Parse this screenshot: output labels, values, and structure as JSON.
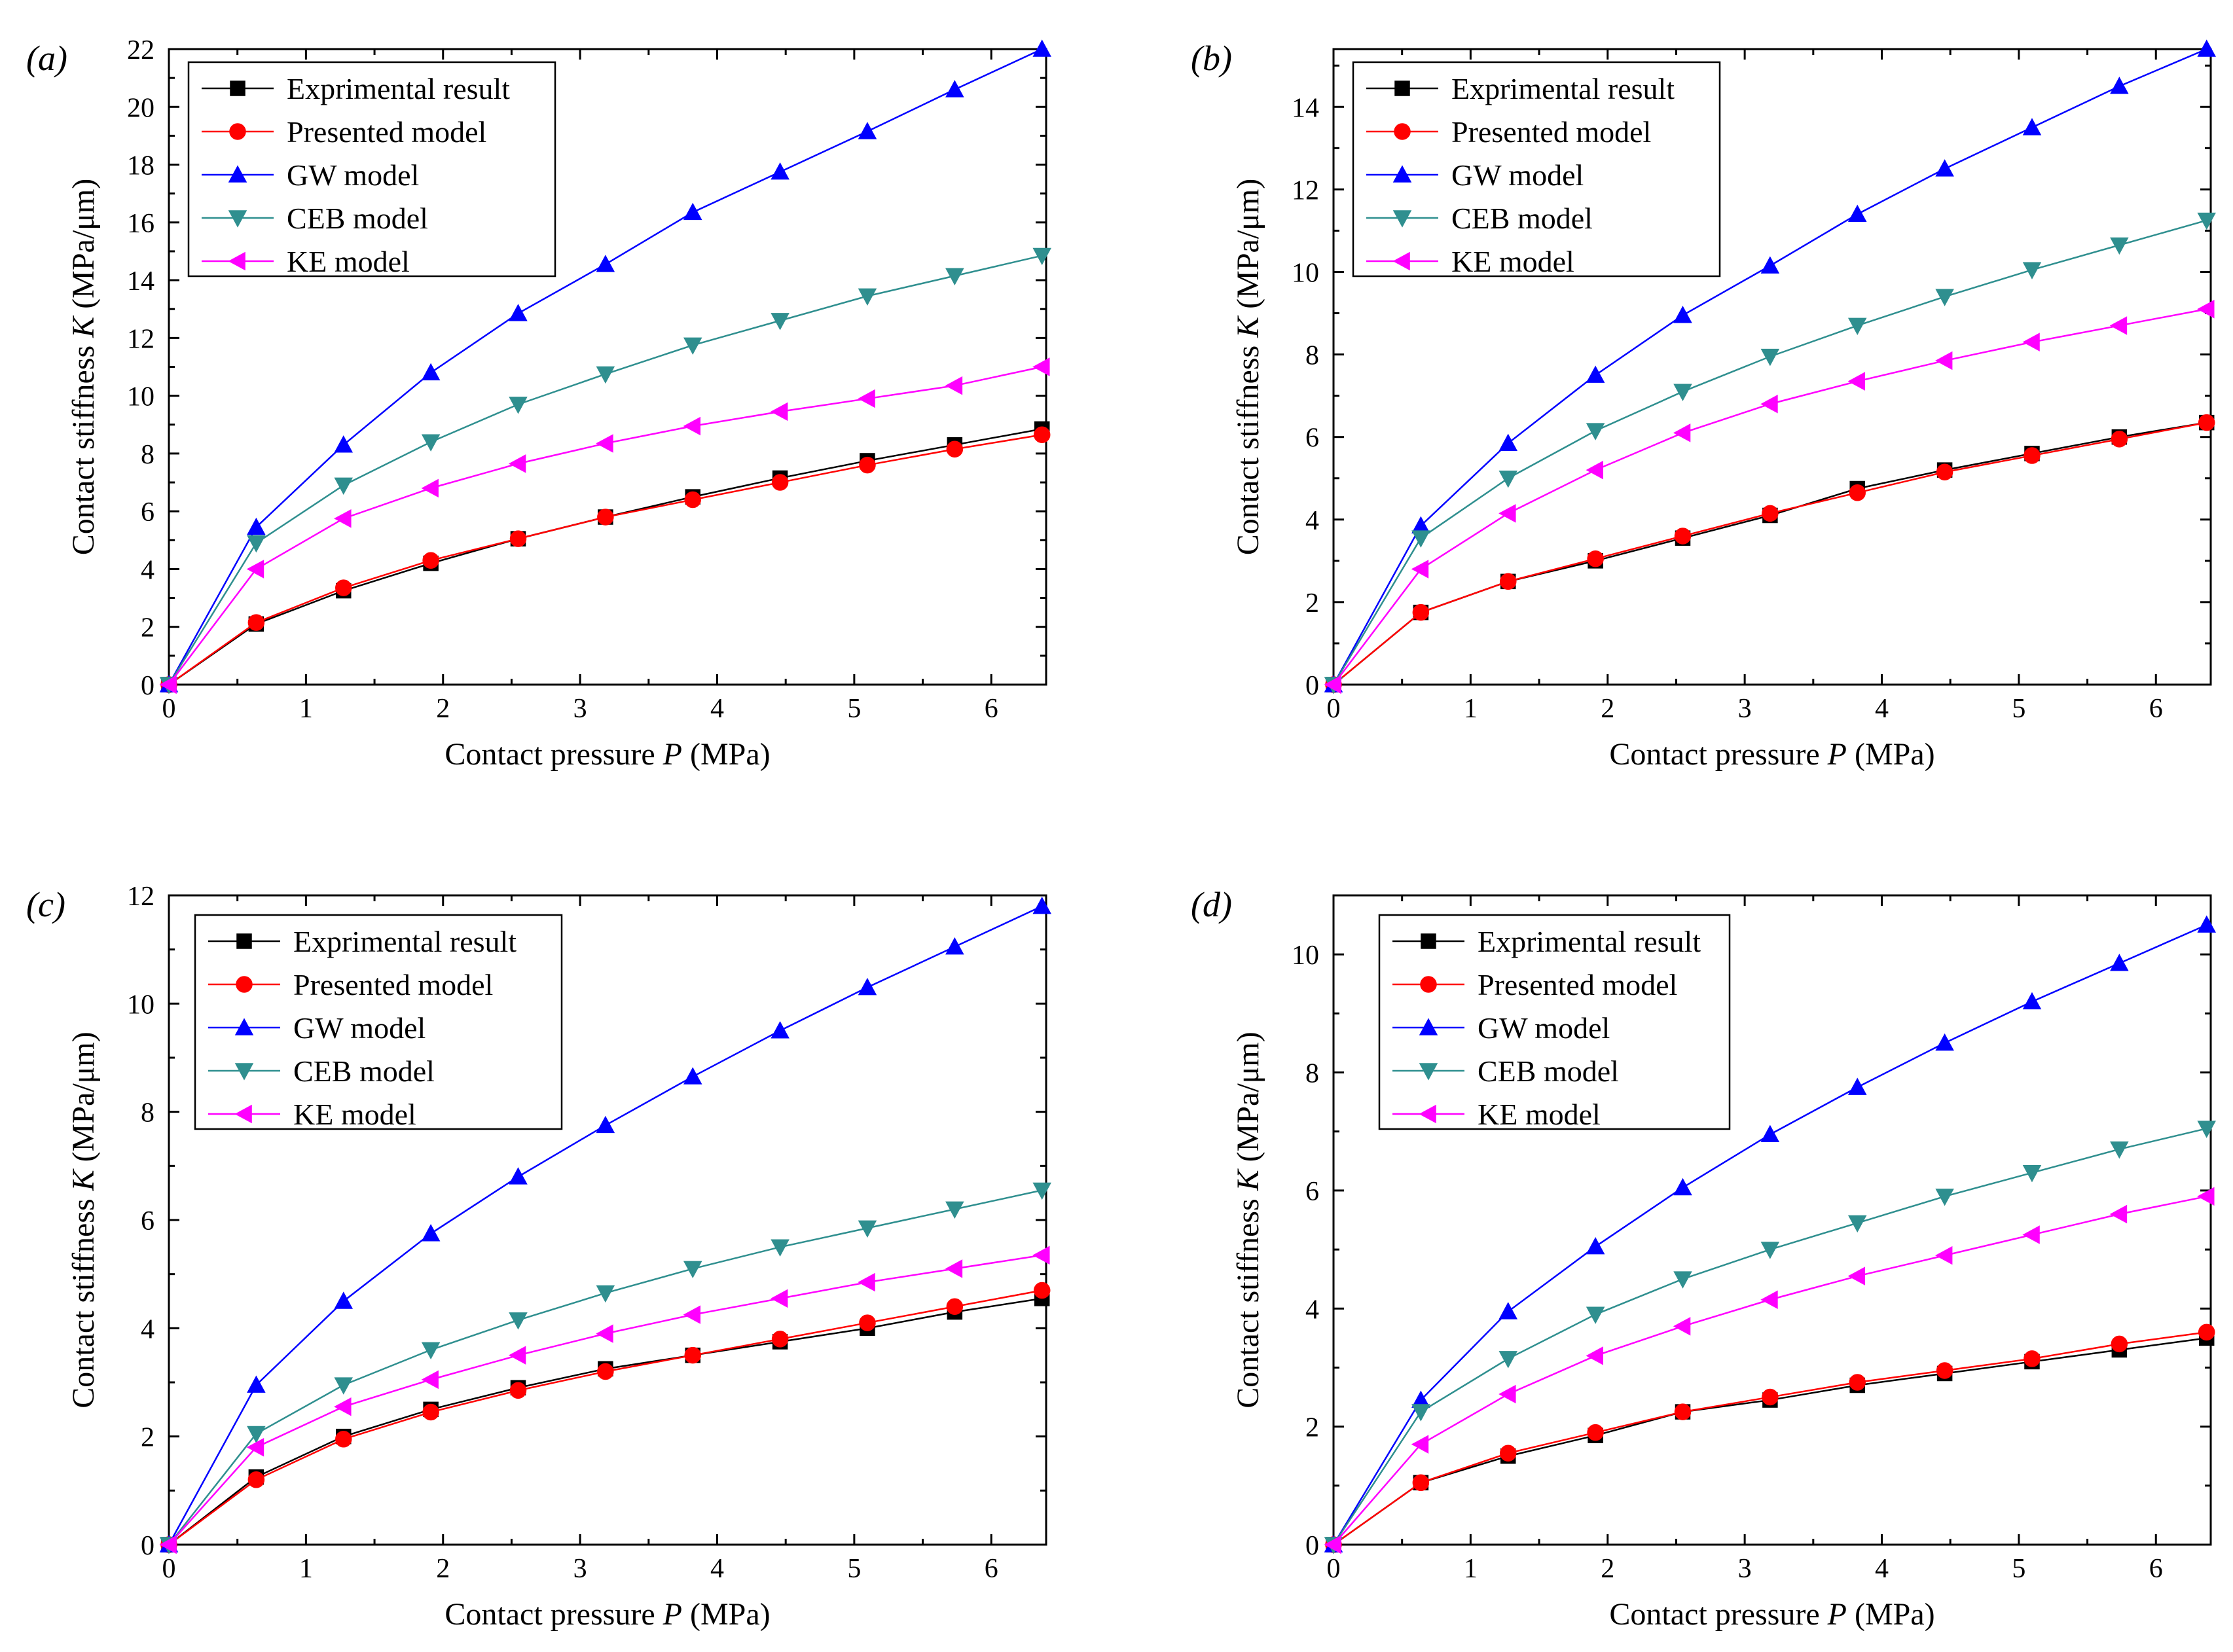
{
  "colors": {
    "Exprimental result": "#000000",
    "Presented model": "#ff0000",
    "GW model": "#0000ff",
    "CEB model": "#2f8f8f",
    "KE model": "#ff00ff"
  },
  "chart_data": [
    {
      "type": "line",
      "panel_label": "(a)",
      "xlabel": "Contact pressure",
      "xlabel_var": "P",
      "xlabel_unit": " (MPa)",
      "ylabel": "Contact stiffness",
      "ylabel_var": "K",
      "ylabel_unit": " (MPa/μm)",
      "xlim": [
        0,
        6.4
      ],
      "ylim": [
        0,
        22
      ],
      "xticks": [
        0,
        1,
        2,
        3,
        4,
        5,
        6
      ],
      "yticks": [
        0,
        2,
        4,
        6,
        8,
        10,
        12,
        14,
        16,
        18,
        20,
        22
      ],
      "legend_position": "top-left",
      "x": [
        0,
        0.637,
        1.274,
        1.911,
        2.548,
        3.185,
        3.822,
        4.459,
        5.096,
        5.733,
        6.37
      ],
      "series": [
        {
          "name": "Exprimental result",
          "marker": "square",
          "values": [
            0,
            2.1,
            3.25,
            4.2,
            5.05,
            5.8,
            6.5,
            7.15,
            7.75,
            8.3,
            8.85
          ]
        },
        {
          "name": "Presented model",
          "marker": "circle",
          "values": [
            0,
            2.15,
            3.35,
            4.3,
            5.05,
            5.8,
            6.4,
            7.0,
            7.6,
            8.15,
            8.65
          ]
        },
        {
          "name": "GW model",
          "marker": "triangle-up",
          "values": [
            0,
            5.45,
            8.3,
            10.8,
            12.85,
            14.55,
            16.35,
            17.75,
            19.15,
            20.6,
            22.0
          ]
        },
        {
          "name": "CEB model",
          "marker": "triangle-down",
          "values": [
            0,
            4.9,
            6.9,
            8.4,
            9.7,
            10.75,
            11.75,
            12.6,
            13.45,
            14.15,
            14.85
          ]
        },
        {
          "name": "KE model",
          "marker": "triangle-left",
          "values": [
            0,
            4.0,
            5.75,
            6.8,
            7.65,
            8.35,
            8.95,
            9.45,
            9.9,
            10.35,
            11.0
          ]
        }
      ]
    },
    {
      "type": "line",
      "panel_label": "(b)",
      "xlabel": "Contact pressure",
      "xlabel_var": "P",
      "xlabel_unit": " (MPa)",
      "ylabel": "Contact stiffness",
      "ylabel_var": "K",
      "ylabel_unit": " (MPa/μm)",
      "xlim": [
        0,
        6.4
      ],
      "ylim": [
        0,
        15.4
      ],
      "xticks": [
        0,
        1,
        2,
        3,
        4,
        5,
        6
      ],
      "yticks": [
        0,
        2,
        4,
        6,
        8,
        10,
        12,
        14
      ],
      "legend_position": "top-left",
      "x": [
        0,
        0.637,
        1.274,
        1.911,
        2.548,
        3.185,
        3.822,
        4.459,
        5.096,
        5.733,
        6.37
      ],
      "series": [
        {
          "name": "Exprimental result",
          "marker": "square",
          "values": [
            0,
            1.75,
            2.5,
            3.0,
            3.55,
            4.1,
            4.75,
            5.2,
            5.6,
            6.0,
            6.35
          ]
        },
        {
          "name": "Presented model",
          "marker": "circle",
          "values": [
            0,
            1.75,
            2.5,
            3.05,
            3.6,
            4.15,
            4.65,
            5.15,
            5.55,
            5.95,
            6.35
          ]
        },
        {
          "name": "GW model",
          "marker": "triangle-up",
          "values": [
            0,
            3.85,
            5.85,
            7.5,
            8.95,
            10.15,
            11.4,
            12.5,
            13.5,
            14.5,
            15.4
          ]
        },
        {
          "name": "CEB model",
          "marker": "triangle-down",
          "values": [
            0,
            3.55,
            5.0,
            6.15,
            7.1,
            7.95,
            8.7,
            9.4,
            10.05,
            10.65,
            11.25
          ]
        },
        {
          "name": "KE model",
          "marker": "triangle-left",
          "values": [
            0,
            2.8,
            4.15,
            5.2,
            6.1,
            6.8,
            7.35,
            7.85,
            8.3,
            8.7,
            9.1
          ]
        }
      ]
    },
    {
      "type": "line",
      "panel_label": "(c)",
      "xlabel": "Contact pressure",
      "xlabel_var": "P",
      "xlabel_unit": " (MPa)",
      "ylabel": "Contact stiffness",
      "ylabel_var": "K",
      "ylabel_unit": " (MPa/μm)",
      "xlim": [
        0,
        6.4
      ],
      "ylim": [
        0,
        12
      ],
      "xticks": [
        0,
        1,
        2,
        3,
        4,
        5,
        6
      ],
      "yticks": [
        0,
        2,
        4,
        6,
        8,
        10,
        12
      ],
      "legend_position": "top-left",
      "x": [
        0,
        0.637,
        1.274,
        1.911,
        2.548,
        3.185,
        3.822,
        4.459,
        5.096,
        5.733,
        6.37
      ],
      "series": [
        {
          "name": "Exprimental result",
          "marker": "square",
          "values": [
            0,
            1.25,
            2.0,
            2.5,
            2.9,
            3.25,
            3.5,
            3.75,
            4.0,
            4.3,
            4.55
          ]
        },
        {
          "name": "Presented model",
          "marker": "circle",
          "values": [
            0,
            1.2,
            1.95,
            2.45,
            2.85,
            3.2,
            3.5,
            3.8,
            4.1,
            4.4,
            4.7
          ]
        },
        {
          "name": "GW model",
          "marker": "triangle-up",
          "values": [
            0,
            2.95,
            4.5,
            5.75,
            6.8,
            7.75,
            8.65,
            9.5,
            10.3,
            11.05,
            11.8
          ]
        },
        {
          "name": "CEB model",
          "marker": "triangle-down",
          "values": [
            0,
            2.05,
            2.95,
            3.6,
            4.15,
            4.65,
            5.1,
            5.5,
            5.85,
            6.2,
            6.55
          ]
        },
        {
          "name": "KE model",
          "marker": "triangle-left",
          "values": [
            0,
            1.8,
            2.55,
            3.05,
            3.5,
            3.9,
            4.25,
            4.55,
            4.85,
            5.1,
            5.35
          ]
        }
      ]
    },
    {
      "type": "line",
      "panel_label": "(d)",
      "xlabel": "Contact pressure",
      "xlabel_var": "P",
      "xlabel_unit": " (MPa)",
      "ylabel": "Contact stiffness",
      "ylabel_var": "K",
      "ylabel_unit": " (MPa/μm)",
      "xlim": [
        0,
        6.4
      ],
      "ylim": [
        0,
        11
      ],
      "xticks": [
        0,
        1,
        2,
        3,
        4,
        5,
        6
      ],
      "yticks": [
        0,
        2,
        4,
        6,
        8,
        10
      ],
      "legend_position": "top-left",
      "x": [
        0,
        0.637,
        1.274,
        1.911,
        2.548,
        3.185,
        3.822,
        4.459,
        5.096,
        5.733,
        6.37
      ],
      "series": [
        {
          "name": "Exprimental result",
          "marker": "square",
          "values": [
            0,
            1.05,
            1.5,
            1.85,
            2.25,
            2.45,
            2.7,
            2.9,
            3.1,
            3.3,
            3.5
          ]
        },
        {
          "name": "Presented model",
          "marker": "circle",
          "values": [
            0,
            1.05,
            1.55,
            1.9,
            2.25,
            2.5,
            2.75,
            2.95,
            3.15,
            3.4,
            3.6
          ]
        },
        {
          "name": "GW model",
          "marker": "triangle-up",
          "values": [
            0,
            2.45,
            3.95,
            5.05,
            6.05,
            6.95,
            7.75,
            8.5,
            9.2,
            9.85,
            10.5
          ]
        },
        {
          "name": "CEB model",
          "marker": "triangle-down",
          "values": [
            0,
            2.25,
            3.15,
            3.9,
            4.5,
            5.0,
            5.45,
            5.9,
            6.3,
            6.7,
            7.05
          ]
        },
        {
          "name": "KE model",
          "marker": "triangle-left",
          "values": [
            0,
            1.7,
            2.55,
            3.2,
            3.7,
            4.15,
            4.55,
            4.9,
            5.25,
            5.6,
            5.9
          ]
        }
      ]
    }
  ]
}
